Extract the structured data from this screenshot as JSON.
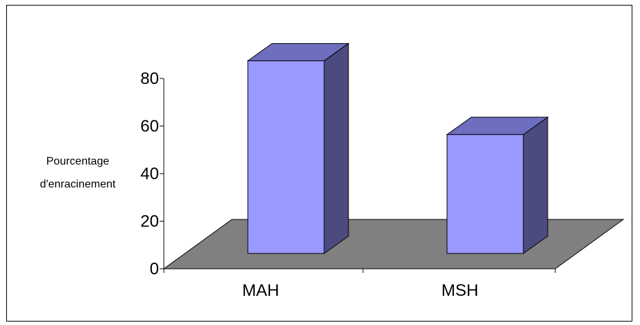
{
  "chart_data": {
    "type": "bar",
    "title": "",
    "xlabel": "",
    "ylabel": "Pourcentage d'enracinement",
    "ylabel_lines": [
      "Pourcentage",
      "d'enracinement"
    ],
    "categories": [
      "MAH",
      "MSH"
    ],
    "values": [
      81,
      50
    ],
    "ylim": [
      0,
      80
    ],
    "yticks": [
      0,
      20,
      40,
      60,
      80
    ],
    "grid": false,
    "legend": "none",
    "style": "3d-column",
    "colors": {
      "bar_front": "#9999ff",
      "bar_top": "#6e6ec0",
      "bar_side": "#4b4b80",
      "floor": "#808080",
      "outline": "#000000"
    }
  }
}
